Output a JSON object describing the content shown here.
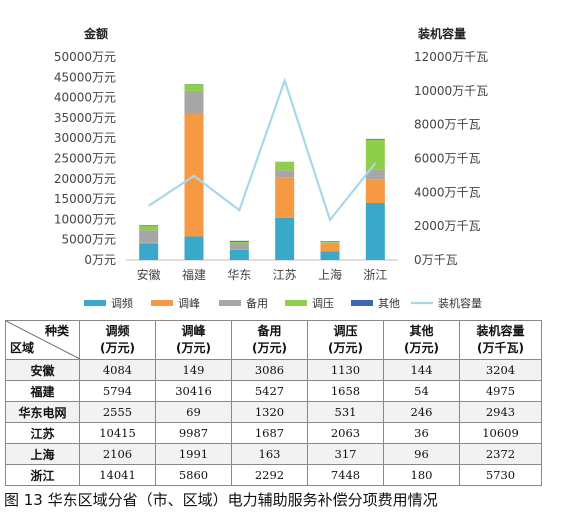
{
  "chart_data": {
    "type": "bar",
    "stacked": true,
    "categories": [
      "安徽",
      "福建",
      "华东",
      "江苏",
      "上海",
      "浙江"
    ],
    "left_axis_title": "金额",
    "right_axis_title": "装机容量",
    "left_axis": {
      "min": 0,
      "max": 50000,
      "step": 5000,
      "unit": "万元",
      "ticks": [
        "0万元",
        "5000万元",
        "10000万元",
        "15000万元",
        "20000万元",
        "25000万元",
        "30000万元",
        "35000万元",
        "40000万元",
        "45000万元",
        "50000万元"
      ]
    },
    "right_axis": {
      "min": 0,
      "max": 12000,
      "step": 2000,
      "unit": "万千瓦",
      "ticks": [
        "0万千瓦",
        "2000万千瓦",
        "4000万千瓦",
        "6000万千瓦",
        "8000万千瓦",
        "10000万千瓦",
        "12000万千瓦"
      ]
    },
    "series": [
      {
        "name": "调频",
        "type": "bar",
        "color": "#3aa8c8",
        "values": [
          4084,
          5794,
          2555,
          10415,
          2106,
          14041
        ]
      },
      {
        "name": "调峰",
        "type": "bar",
        "color": "#f59a42",
        "values": [
          149,
          30416,
          69,
          9987,
          1991,
          5860
        ]
      },
      {
        "name": "备用",
        "type": "bar",
        "color": "#a6a6a6",
        "values": [
          3086,
          5427,
          1320,
          1687,
          163,
          2292
        ]
      },
      {
        "name": "调压",
        "type": "bar",
        "color": "#8fce4a",
        "values": [
          1130,
          1658,
          531,
          2063,
          317,
          7448
        ]
      },
      {
        "name": "其他",
        "type": "bar",
        "color": "#3b68b0",
        "values": [
          144,
          54,
          246,
          36,
          96,
          180
        ]
      },
      {
        "name": "装机容量",
        "type": "line",
        "axis": "right",
        "color": "#a8d8e8",
        "values": [
          3204,
          4975,
          2943,
          10609,
          2372,
          5730
        ]
      }
    ],
    "grid": false,
    "legend_position": "bottom"
  },
  "table": {
    "corner_top": "种类",
    "corner_bottom": "区域",
    "headers": [
      {
        "label": "调频",
        "unit": "(万元)"
      },
      {
        "label": "调峰",
        "unit": "(万元)"
      },
      {
        "label": "备用",
        "unit": "(万元)"
      },
      {
        "label": "调压",
        "unit": "(万元)"
      },
      {
        "label": "其他",
        "unit": "(万元)"
      },
      {
        "label": "装机容量",
        "unit": "(万千瓦)"
      }
    ],
    "rows": [
      {
        "name": "安徽",
        "values": [
          "4084",
          "149",
          "3086",
          "1130",
          "144",
          "3204"
        ]
      },
      {
        "name": "福建",
        "values": [
          "5794",
          "30416",
          "5427",
          "1658",
          "54",
          "4975"
        ]
      },
      {
        "name": "华东电网",
        "values": [
          "2555",
          "69",
          "1320",
          "531",
          "246",
          "2943"
        ]
      },
      {
        "name": "江苏",
        "values": [
          "10415",
          "9987",
          "1687",
          "2063",
          "36",
          "10609"
        ]
      },
      {
        "name": "上海",
        "values": [
          "2106",
          "1991",
          "163",
          "317",
          "96",
          "2372"
        ]
      },
      {
        "name": "浙江",
        "values": [
          "14041",
          "5860",
          "2292",
          "7448",
          "180",
          "5730"
        ]
      }
    ]
  },
  "caption": "图 13  华东区域分省（市、区域）电力辅助服务补偿分项费用情况"
}
